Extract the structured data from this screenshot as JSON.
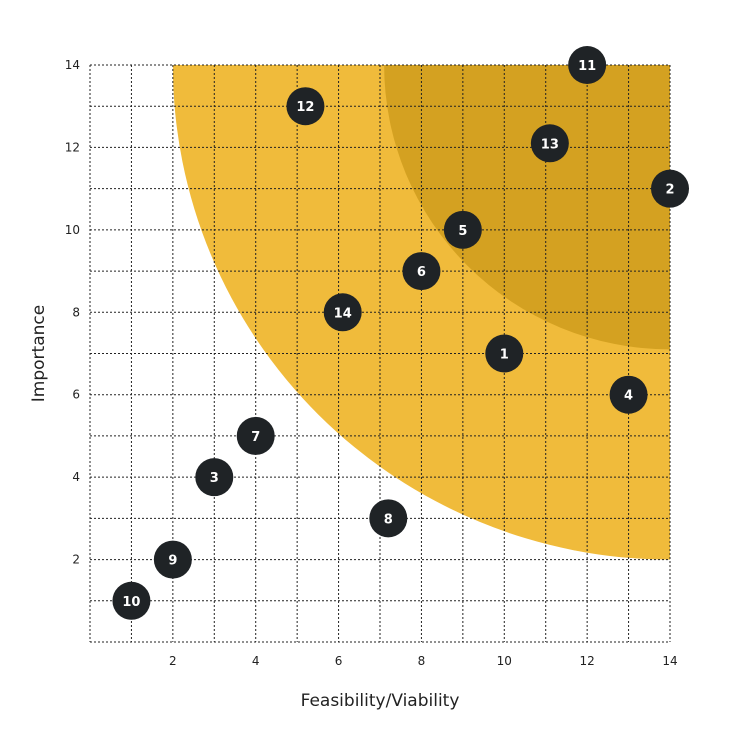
{
  "chart_data": {
    "type": "scatter",
    "xlabel": "Feasibility/Viability",
    "ylabel": "Importance",
    "xlim": [
      0,
      14
    ],
    "ylim": [
      0,
      14
    ],
    "x_ticks": [
      2,
      4,
      6,
      8,
      10,
      12,
      14
    ],
    "y_ticks": [
      2,
      4,
      6,
      8,
      10,
      12,
      14
    ],
    "grid": "dotted",
    "colors": {
      "outer_zone": "#f0bb3b",
      "inner_zone": "#d4a121",
      "point": "#1f2326",
      "point_label": "#ffffff"
    },
    "zones": [
      {
        "center": [
          14,
          14
        ],
        "radius": 12,
        "color": "#f0bb3b"
      },
      {
        "center": [
          14,
          14
        ],
        "radius": 6.9,
        "color": "#d4a121"
      }
    ],
    "points": [
      {
        "label": "1",
        "x": 10,
        "y": 7
      },
      {
        "label": "2",
        "x": 14,
        "y": 11
      },
      {
        "label": "3",
        "x": 3,
        "y": 4
      },
      {
        "label": "4",
        "x": 13,
        "y": 6
      },
      {
        "label": "5",
        "x": 9,
        "y": 10
      },
      {
        "label": "6",
        "x": 8,
        "y": 9
      },
      {
        "label": "7",
        "x": 4,
        "y": 5
      },
      {
        "label": "8",
        "x": 7.2,
        "y": 3
      },
      {
        "label": "9",
        "x": 2,
        "y": 2
      },
      {
        "label": "10",
        "x": 1,
        "y": 1
      },
      {
        "label": "11",
        "x": 12,
        "y": 14
      },
      {
        "label": "12",
        "x": 5.2,
        "y": 13
      },
      {
        "label": "13",
        "x": 11.1,
        "y": 12.1
      },
      {
        "label": "14",
        "x": 6.1,
        "y": 8
      }
    ]
  }
}
